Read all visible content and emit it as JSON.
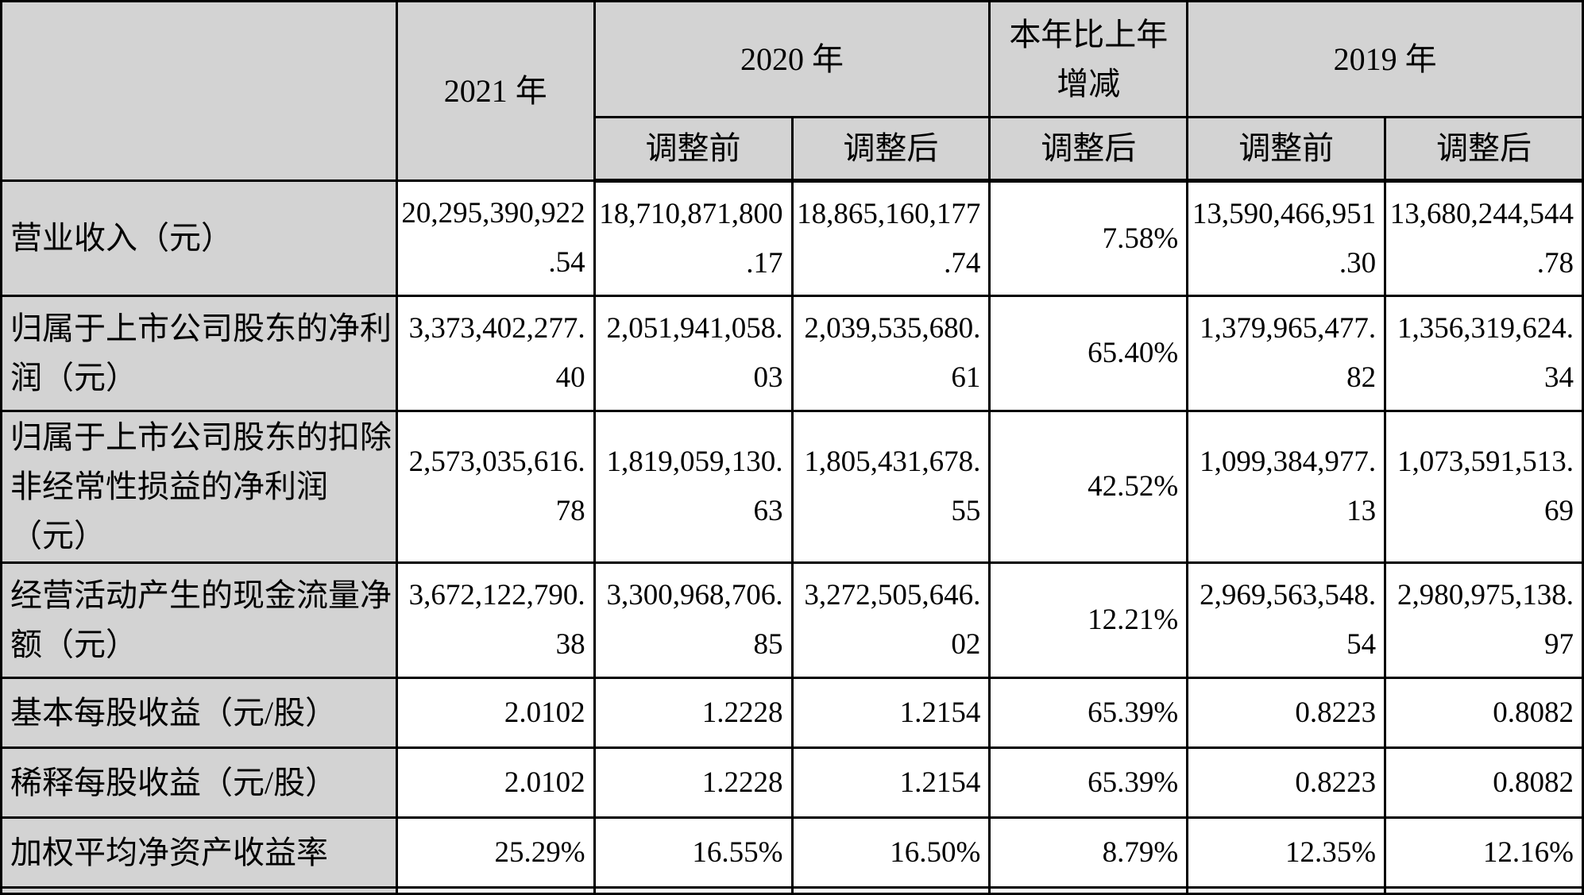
{
  "colors": {
    "header_bg": "#d3d3d3",
    "cell_bg": "#ffffff",
    "border": "#000000"
  },
  "table": {
    "header": {
      "y2021": "2021 年",
      "y2020": "2020 年",
      "change": "本年比上年增减",
      "y2019": "2019 年",
      "sub": [
        "调整前",
        "调整后",
        "调整后",
        "调整前",
        "调整后"
      ]
    },
    "rows": [
      {
        "label": "营业收入（元）",
        "cells": [
          [
            "20,295,390,922",
            ".54"
          ],
          [
            "18,710,871,800",
            ".17"
          ],
          [
            "18,865,160,177",
            ".74"
          ],
          "7.58%",
          [
            "13,590,466,951",
            ".30"
          ],
          [
            "13,680,244,544",
            ".78"
          ]
        ]
      },
      {
        "label": "归属于上市公司股东的净利润（元）",
        "cells": [
          [
            "3,373,402,277.",
            "40"
          ],
          [
            "2,051,941,058.",
            "03"
          ],
          [
            "2,039,535,680.",
            "61"
          ],
          "65.40%",
          [
            "1,379,965,477.",
            "82"
          ],
          [
            "1,356,319,624.",
            "34"
          ]
        ]
      },
      {
        "label": "归属于上市公司股东的扣除非经常性损益的净利润（元）",
        "cells": [
          [
            "2,573,035,616.",
            "78"
          ],
          [
            "1,819,059,130.",
            "63"
          ],
          [
            "1,805,431,678.",
            "55"
          ],
          "42.52%",
          [
            "1,099,384,977.",
            "13"
          ],
          [
            "1,073,591,513.",
            "69"
          ]
        ]
      },
      {
        "label": "经营活动产生的现金流量净额（元）",
        "cells": [
          [
            "3,672,122,790.",
            "38"
          ],
          [
            "3,300,968,706.",
            "85"
          ],
          [
            "3,272,505,646.",
            "02"
          ],
          "12.21%",
          [
            "2,969,563,548.",
            "54"
          ],
          [
            "2,980,975,138.",
            "97"
          ]
        ]
      },
      {
        "label": "基本每股收益（元/股）",
        "cells": [
          "2.0102",
          "1.2228",
          "1.2154",
          "65.39%",
          "0.8223",
          "0.8082"
        ]
      },
      {
        "label": "稀释每股收益（元/股）",
        "cells": [
          "2.0102",
          "1.2228",
          "1.2154",
          "65.39%",
          "0.8223",
          "0.8082"
        ]
      },
      {
        "label": "加权平均净资产收益率",
        "cells": [
          "25.29%",
          "16.55%",
          "16.50%",
          "8.79%",
          "12.35%",
          "12.16%"
        ]
      }
    ]
  }
}
